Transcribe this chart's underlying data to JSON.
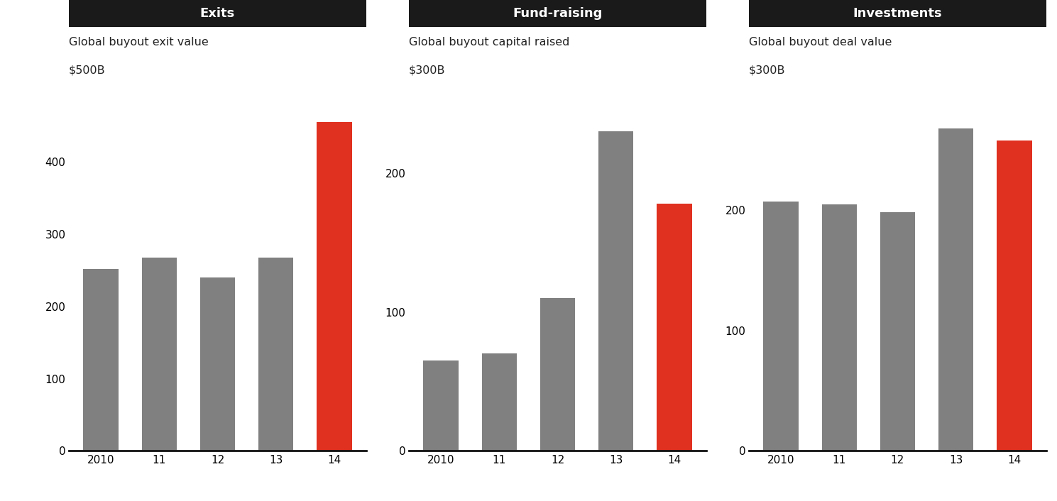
{
  "panels": [
    {
      "header": "Exits",
      "subtitle": "Global buyout exit value",
      "ylabel": "$500B",
      "ylim": [
        0,
        500
      ],
      "yticks": [
        0,
        100,
        200,
        300,
        400
      ],
      "categories": [
        "2010",
        "11",
        "12",
        "13",
        "14"
      ],
      "values": [
        252,
        268,
        240,
        268,
        455
      ],
      "colors": [
        "#808080",
        "#808080",
        "#808080",
        "#808080",
        "#e03020"
      ]
    },
    {
      "header": "Fund-raising",
      "subtitle": "Global buyout capital raised",
      "ylabel": "$300B",
      "ylim": [
        0,
        260
      ],
      "yticks": [
        0,
        100,
        200
      ],
      "categories": [
        "2010",
        "11",
        "12",
        "13",
        "14"
      ],
      "values": [
        65,
        70,
        110,
        230,
        178
      ],
      "colors": [
        "#808080",
        "#808080",
        "#808080",
        "#808080",
        "#e03020"
      ]
    },
    {
      "header": "Investments",
      "subtitle": "Global buyout deal value",
      "ylabel": "$300B",
      "ylim": [
        0,
        300
      ],
      "yticks": [
        0,
        100,
        200
      ],
      "categories": [
        "2010",
        "11",
        "12",
        "13",
        "14"
      ],
      "values": [
        207,
        205,
        198,
        268,
        258
      ],
      "colors": [
        "#808080",
        "#808080",
        "#808080",
        "#808080",
        "#e03020"
      ]
    }
  ],
  "header_bg_color": "#1a1a1a",
  "header_text_color": "#ffffff",
  "header_fontsize": 13,
  "subtitle_fontsize": 11.5,
  "ylabel_fontsize": 11.5,
  "tick_fontsize": 11,
  "bar_width": 0.6,
  "bg_color": "#ffffff",
  "axis_line_color": "#111111",
  "tick_color": "#333333"
}
